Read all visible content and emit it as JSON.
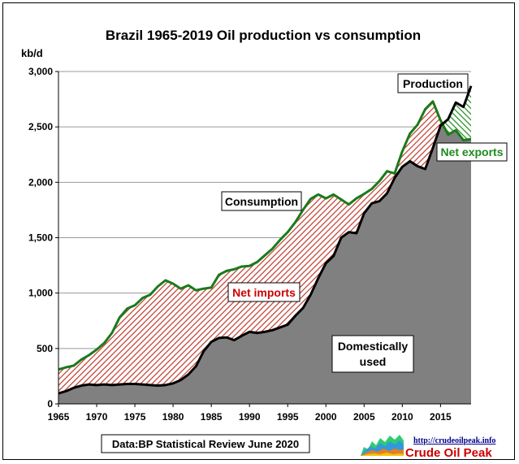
{
  "chart_data": {
    "type": "area",
    "title": "Brazil 1965-2019 Oil production vs consumption",
    "ylabel": "kb/d",
    "xlabel": "",
    "ylim": [
      0,
      3000
    ],
    "xlim": [
      1965,
      2019
    ],
    "grid": "horizontal",
    "y_ticks": [
      "0",
      "500",
      "1,000",
      "1,500",
      "2,000",
      "2,500",
      "3,000"
    ],
    "x_ticks": [
      "1965",
      "1970",
      "1975",
      "1980",
      "1985",
      "1990",
      "1995",
      "2000",
      "2005",
      "2010",
      "2015"
    ],
    "x": [
      1965,
      1966,
      1967,
      1968,
      1969,
      1970,
      1971,
      1972,
      1973,
      1974,
      1975,
      1976,
      1977,
      1978,
      1979,
      1980,
      1981,
      1982,
      1983,
      1984,
      1985,
      1986,
      1987,
      1988,
      1989,
      1990,
      1991,
      1992,
      1993,
      1994,
      1995,
      1996,
      1997,
      1998,
      1999,
      2000,
      2001,
      2002,
      2003,
      2004,
      2005,
      2006,
      2007,
      2008,
      2009,
      2010,
      2011,
      2012,
      2013,
      2014,
      2015,
      2016,
      2017,
      2018,
      2019
    ],
    "series": [
      {
        "name": "Production",
        "color": "#000000",
        "values": [
          95,
          115,
          145,
          165,
          175,
          170,
          175,
          170,
          175,
          180,
          180,
          175,
          170,
          165,
          170,
          185,
          215,
          265,
          340,
          475,
          560,
          595,
          600,
          575,
          615,
          650,
          640,
          650,
          665,
          690,
          715,
          795,
          865,
          985,
          1135,
          1270,
          1335,
          1500,
          1550,
          1540,
          1720,
          1810,
          1830,
          1900,
          2040,
          2140,
          2190,
          2145,
          2120,
          2310,
          2510,
          2570,
          2720,
          2680,
          2870
        ]
      },
      {
        "name": "Consumption",
        "color": "#1a7a1a",
        "values": [
          310,
          330,
          345,
          400,
          440,
          490,
          550,
          640,
          780,
          860,
          890,
          955,
          985,
          1060,
          1115,
          1085,
          1040,
          1070,
          1025,
          1040,
          1050,
          1165,
          1200,
          1215,
          1240,
          1245,
          1280,
          1340,
          1400,
          1480,
          1550,
          1640,
          1750,
          1850,
          1890,
          1855,
          1890,
          1845,
          1800,
          1855,
          1895,
          1940,
          2010,
          2100,
          2080,
          2280,
          2440,
          2520,
          2660,
          2730,
          2560,
          2430,
          2470,
          2380,
          2390
        ]
      }
    ],
    "annotations": {
      "production": "Production",
      "consumption": "Consumption",
      "net_imports": "Net imports",
      "net_exports": "Net exports",
      "domestic_line1": "Domestically",
      "domestic_line2": "used",
      "source": "Data:BP Statistical Review June 2020"
    },
    "colors": {
      "domestic": "#808080",
      "imports_hatch": "#c0392b",
      "exports_hatch": "#1e8b1e",
      "consumption_line": "#1a7a1a",
      "production_line": "#000000",
      "net_imports_text": "#cc0000",
      "net_exports_text": "#1e8b1e",
      "grid": "#999999"
    }
  },
  "logo": {
    "url": "http://crudeoilpeak.info",
    "name": "Crude Oil Peak"
  }
}
